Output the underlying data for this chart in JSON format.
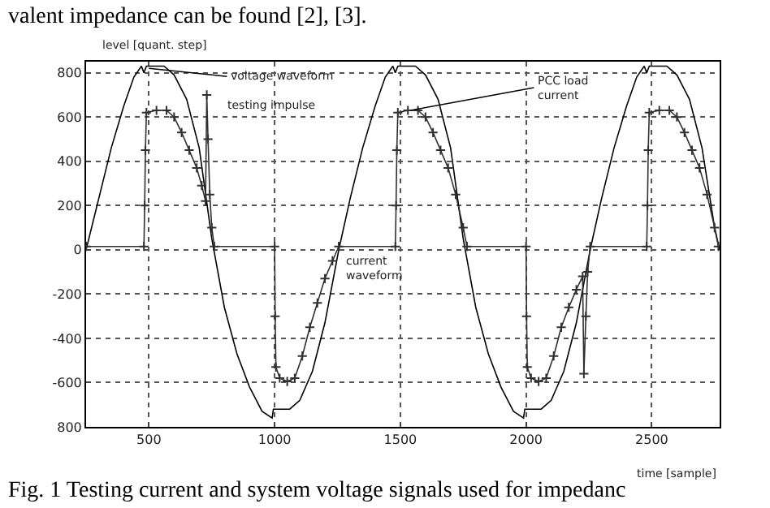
{
  "chart_data": {
    "type": "line",
    "xlabel": "time [sample]",
    "ylabel": "level [quant. step]",
    "xlim": [
      250,
      2770
    ],
    "ylim": [
      -800,
      850
    ],
    "xticks": [
      500,
      1000,
      1500,
      2000,
      2500
    ],
    "yticks": [
      {
        "value": -800,
        "label": "800"
      },
      -600,
      -400,
      -200,
      0,
      200,
      400,
      600,
      800
    ],
    "grid": true,
    "series": [
      {
        "color": "#000000",
        "marker": "none",
        "x": [
          250,
          300,
          350,
          400,
          440,
          470,
          480,
          490,
          560,
          600,
          650,
          700,
          750,
          800,
          850,
          900,
          950,
          990,
          995,
          1060,
          1100,
          1150,
          1200,
          1255,
          1300,
          1350,
          1400,
          1440,
          1470,
          1480,
          1490,
          1560,
          1600,
          1650,
          1700,
          1750,
          1800,
          1850,
          1900,
          1950,
          1990,
          1995,
          2060,
          2100,
          2150,
          2200,
          2255,
          2300,
          2350,
          2400,
          2440,
          2470,
          2480,
          2490,
          2560,
          2600,
          2650,
          2700,
          2750,
          2770
        ],
        "values": [
          0,
          230,
          460,
          650,
          780,
          830,
          800,
          830,
          830,
          790,
          680,
          460,
          50,
          -260,
          -470,
          -620,
          -730,
          -760,
          -720,
          -720,
          -680,
          -550,
          -330,
          0,
          230,
          460,
          650,
          780,
          830,
          800,
          830,
          830,
          790,
          680,
          460,
          50,
          -260,
          -470,
          -620,
          -730,
          -760,
          -720,
          -720,
          -680,
          -550,
          -330,
          0,
          230,
          460,
          650,
          780,
          830,
          800,
          830,
          830,
          790,
          680,
          460,
          100,
          0
        ]
      },
      {
        "color": "#303030",
        "marker": "cross",
        "x": [
          250,
          480,
          483,
          486,
          490,
          530,
          570,
          600,
          630,
          660,
          690,
          710,
          725,
          730,
          735,
          742,
          750,
          760,
          1000,
          1002,
          1005,
          1020,
          1050,
          1080,
          1110,
          1140,
          1170,
          1200,
          1230,
          1255,
          1480,
          1483,
          1486,
          1490,
          1530,
          1570,
          1600,
          1630,
          1660,
          1690,
          1720,
          1750,
          1765,
          2000,
          2002,
          2005,
          2020,
          2050,
          2080,
          2110,
          2140,
          2170,
          2200,
          2225,
          2230,
          2238,
          2245,
          2255,
          2480,
          2483,
          2486,
          2490,
          2530,
          2570,
          2600,
          2630,
          2660,
          2690,
          2720,
          2750,
          2765
        ],
        "values": [
          15,
          15,
          200,
          450,
          620,
          630,
          630,
          600,
          530,
          450,
          370,
          290,
          220,
          700,
          500,
          250,
          100,
          15,
          15,
          -300,
          -530,
          -580,
          -595,
          -580,
          -480,
          -350,
          -240,
          -130,
          -50,
          15,
          15,
          200,
          450,
          620,
          630,
          630,
          600,
          530,
          450,
          370,
          250,
          100,
          15,
          15,
          -300,
          -530,
          -580,
          -595,
          -580,
          -480,
          -350,
          -260,
          -180,
          -120,
          -560,
          -300,
          -100,
          15,
          15,
          200,
          450,
          620,
          630,
          630,
          600,
          530,
          450,
          370,
          250,
          100,
          15
        ]
      }
    ],
    "annotations": [
      "valent impedance can be found [2], [3].",
      {
        "text": "voltage waveform",
        "x": 500,
        "y": 820
      },
      {
        "text": "testing impulse",
        "x": 732,
        "y": 680
      },
      {
        "text": "current\nwaveform",
        "x": 1270,
        "y": -85
      },
      {
        "text": "PCC load\ncurrent",
        "x": 1540,
        "y": 630
      },
      "Fig. 1 Testing current and system voltage signals used for impedanc"
    ]
  }
}
